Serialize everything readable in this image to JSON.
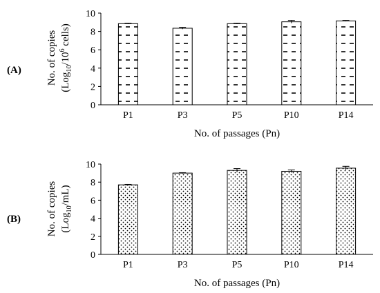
{
  "chart_data": [
    {
      "type": "bar",
      "panel_label": "(A)",
      "categories": [
        "P1",
        "P3",
        "P5",
        "P10",
        "P14"
      ],
      "values": [
        8.85,
        8.35,
        8.85,
        9.05,
        9.15
      ],
      "errors": [
        0.05,
        0.1,
        0.05,
        0.15,
        0.05
      ],
      "ylabel_line1": "No. of copies",
      "ylabel_line2_prefix": "(Log",
      "ylabel_line2_sub": "10",
      "ylabel_line2_mid": "/10",
      "ylabel_line2_sup": "6",
      "ylabel_line2_suffix": " cells)",
      "xlabel": "No. of passages (Pn)",
      "ylim": [
        0,
        10
      ],
      "yticks": [
        "0",
        "2",
        "4",
        "6",
        "8",
        "10"
      ],
      "pattern": "dashes",
      "bar_fill": "#ffffff",
      "bar_stroke": "#000000"
    },
    {
      "type": "bar",
      "panel_label": "(B)",
      "categories": [
        "P1",
        "P3",
        "P5",
        "P10",
        "P14"
      ],
      "values": [
        7.7,
        9.0,
        9.3,
        9.2,
        9.55
      ],
      "errors": [
        0.05,
        0.05,
        0.2,
        0.15,
        0.2
      ],
      "ylabel_line1": "No. of copies",
      "ylabel_line2_prefix": "(Log",
      "ylabel_line2_sub": "10",
      "ylabel_line2_suffix": "/mL)",
      "xlabel": "No. of passages (Pn)",
      "ylim": [
        0,
        10
      ],
      "yticks": [
        "0",
        "2",
        "4",
        "6",
        "8",
        "10"
      ],
      "pattern": "dots",
      "bar_fill": "#ffffff",
      "bar_stroke": "#000000"
    }
  ]
}
